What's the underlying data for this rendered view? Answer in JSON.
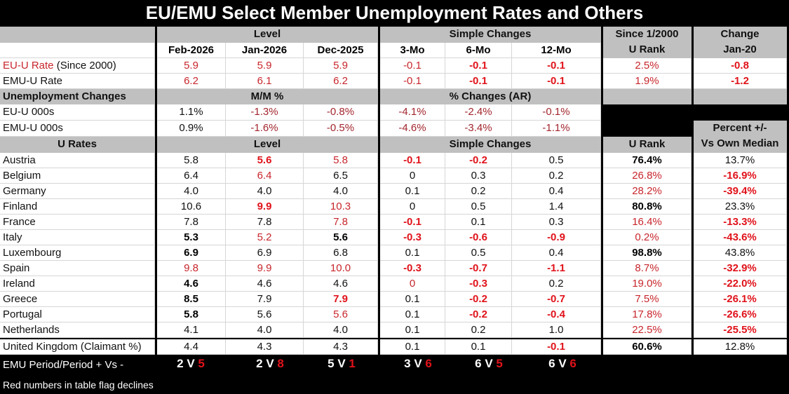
{
  "title": "EU/EMU Select Member Unemployment Rates and Others",
  "header": {
    "level": "Level",
    "simple_changes": "Simple Changes",
    "rank_line1": "Since 1/2000",
    "rank_line2": "U Rank",
    "change_line1": "Change",
    "change_line2": "Jan-20",
    "columns": [
      "Feb-2026",
      "Jan-2026",
      "Dec-2025",
      "3-Mo",
      "6-Mo",
      "12-Mo"
    ]
  },
  "summary_rows": [
    {
      "label": "EU-U Rate",
      "label_note": " (Since 2000)",
      "label_style": "r",
      "cells": [
        [
          "5.9",
          "r"
        ],
        [
          "5.9",
          "r"
        ],
        [
          "5.9",
          "r"
        ],
        [
          "-0.1",
          "r"
        ],
        [
          "-0.1",
          "R"
        ],
        [
          "-0.1",
          "R"
        ],
        [
          "2.5%",
          "r"
        ],
        [
          "-0.8",
          "R"
        ]
      ]
    },
    {
      "label": "EMU-U Rate",
      "label_note": "",
      "label_style": "k",
      "cells": [
        [
          "6.2",
          "r"
        ],
        [
          "6.1",
          "r"
        ],
        [
          "6.2",
          "r"
        ],
        [
          "-0.1",
          "r"
        ],
        [
          "-0.1",
          "R"
        ],
        [
          "-0.1",
          "R"
        ],
        [
          "1.9%",
          "r"
        ],
        [
          "-1.2",
          "R"
        ]
      ]
    }
  ],
  "changes_header": {
    "label": "Unemployment Changes",
    "mm": "M/M %",
    "ar": "% Changes (AR)"
  },
  "changes_rows": [
    {
      "label": "EU-U 000s",
      "cells": [
        [
          "1.1%",
          "k"
        ],
        [
          "-1.3%",
          "d"
        ],
        [
          "-0.8%",
          "d"
        ],
        [
          "-4.1%",
          "d"
        ],
        [
          "-2.4%",
          "d"
        ],
        [
          "-0.1%",
          "d"
        ]
      ]
    },
    {
      "label": "EMU-U 000s",
      "cells": [
        [
          "0.9%",
          "k"
        ],
        [
          "-1.6%",
          "d"
        ],
        [
          "-0.5%",
          "d"
        ],
        [
          "-4.6%",
          "d"
        ],
        [
          "-3.4%",
          "d"
        ],
        [
          "-1.1%",
          "d"
        ]
      ]
    }
  ],
  "rates_header": {
    "label": "U Rates",
    "level": "Level",
    "simple": "Simple Changes",
    "rank": "U Rank",
    "pct_line1": "Percent +/-",
    "pct_line2": "Vs Own Median"
  },
  "countries": [
    {
      "name": "Austria",
      "cells": [
        [
          "5.8",
          "k"
        ],
        [
          "5.6",
          "R"
        ],
        [
          "5.8",
          "r"
        ],
        [
          "-0.1",
          "R"
        ],
        [
          "-0.2",
          "R"
        ],
        [
          "0.5",
          "k"
        ],
        [
          "76.4%",
          "K"
        ],
        [
          "13.7%",
          "k"
        ]
      ]
    },
    {
      "name": "Belgium",
      "cells": [
        [
          "6.4",
          "k"
        ],
        [
          "6.4",
          "r"
        ],
        [
          "6.5",
          "k"
        ],
        [
          "0",
          "k"
        ],
        [
          "0.3",
          "k"
        ],
        [
          "0.2",
          "k"
        ],
        [
          "26.8%",
          "r"
        ],
        [
          "-16.9%",
          "R"
        ]
      ]
    },
    {
      "name": "Germany",
      "cells": [
        [
          "4.0",
          "k"
        ],
        [
          "4.0",
          "k"
        ],
        [
          "4.0",
          "k"
        ],
        [
          "0.1",
          "k"
        ],
        [
          "0.2",
          "k"
        ],
        [
          "0.4",
          "k"
        ],
        [
          "28.2%",
          "r"
        ],
        [
          "-39.4%",
          "R"
        ]
      ]
    },
    {
      "name": "Finland",
      "cells": [
        [
          "10.6",
          "k"
        ],
        [
          "9.9",
          "R"
        ],
        [
          "10.3",
          "r"
        ],
        [
          "0",
          "k"
        ],
        [
          "0.5",
          "k"
        ],
        [
          "1.4",
          "k"
        ],
        [
          "80.8%",
          "K"
        ],
        [
          "23.3%",
          "k"
        ]
      ]
    },
    {
      "name": "France",
      "cells": [
        [
          "7.8",
          "k"
        ],
        [
          "7.8",
          "k"
        ],
        [
          "7.8",
          "r"
        ],
        [
          "-0.1",
          "R"
        ],
        [
          "0.1",
          "k"
        ],
        [
          "0.3",
          "k"
        ],
        [
          "16.4%",
          "r"
        ],
        [
          "-13.3%",
          "R"
        ]
      ]
    },
    {
      "name": "Italy",
      "cells": [
        [
          "5.3",
          "K"
        ],
        [
          "5.2",
          "r"
        ],
        [
          "5.6",
          "K"
        ],
        [
          "-0.3",
          "R"
        ],
        [
          "-0.6",
          "R"
        ],
        [
          "-0.9",
          "R"
        ],
        [
          "0.2%",
          "r"
        ],
        [
          "-43.6%",
          "R"
        ]
      ]
    },
    {
      "name": "Luxembourg",
      "cells": [
        [
          "6.9",
          "K"
        ],
        [
          "6.9",
          "k"
        ],
        [
          "6.8",
          "k"
        ],
        [
          "0.1",
          "k"
        ],
        [
          "0.5",
          "k"
        ],
        [
          "0.4",
          "k"
        ],
        [
          "98.8%",
          "K"
        ],
        [
          "43.8%",
          "k"
        ]
      ]
    },
    {
      "name": "Spain",
      "cells": [
        [
          "9.8",
          "r"
        ],
        [
          "9.9",
          "r"
        ],
        [
          "10.0",
          "r"
        ],
        [
          "-0.3",
          "R"
        ],
        [
          "-0.7",
          "R"
        ],
        [
          "-1.1",
          "R"
        ],
        [
          "8.7%",
          "r"
        ],
        [
          "-32.9%",
          "R"
        ]
      ]
    },
    {
      "name": "Ireland",
      "cells": [
        [
          "4.6",
          "K"
        ],
        [
          "4.6",
          "k"
        ],
        [
          "4.6",
          "k"
        ],
        [
          "0",
          "r"
        ],
        [
          "-0.3",
          "R"
        ],
        [
          "0.2",
          "k"
        ],
        [
          "19.0%",
          "r"
        ],
        [
          "-22.0%",
          "R"
        ]
      ]
    },
    {
      "name": "Greece",
      "cells": [
        [
          "8.5",
          "K"
        ],
        [
          "7.9",
          "k"
        ],
        [
          "7.9",
          "R"
        ],
        [
          "0.1",
          "k"
        ],
        [
          "-0.2",
          "R"
        ],
        [
          "-0.7",
          "R"
        ],
        [
          "7.5%",
          "r"
        ],
        [
          "-26.1%",
          "R"
        ]
      ]
    },
    {
      "name": "Portugal",
      "cells": [
        [
          "5.8",
          "K"
        ],
        [
          "5.6",
          "k"
        ],
        [
          "5.6",
          "r"
        ],
        [
          "0.1",
          "k"
        ],
        [
          "-0.2",
          "R"
        ],
        [
          "-0.4",
          "R"
        ],
        [
          "17.8%",
          "r"
        ],
        [
          "-26.6%",
          "R"
        ]
      ]
    },
    {
      "name": "Netherlands",
      "cells": [
        [
          "4.1",
          "k"
        ],
        [
          "4.0",
          "k"
        ],
        [
          "4.0",
          "k"
        ],
        [
          "0.1",
          "k"
        ],
        [
          "0.2",
          "k"
        ],
        [
          "1.0",
          "k"
        ],
        [
          "22.5%",
          "r"
        ],
        [
          "-25.5%",
          "R"
        ]
      ]
    }
  ],
  "uk_row": {
    "name": "United Kingdom (Claimant %)",
    "cells": [
      [
        "4.4",
        "k"
      ],
      [
        "4.3",
        "k"
      ],
      [
        "4.3",
        "k"
      ],
      [
        "0.1",
        "k"
      ],
      [
        "0.1",
        "k"
      ],
      [
        "-0.1",
        "R"
      ],
      [
        "60.6%",
        "K"
      ],
      [
        "12.8%",
        "k"
      ]
    ]
  },
  "footer": {
    "label": "EMU Period/Period + Vs -",
    "vs": "V",
    "tallies": [
      {
        "plus": "2",
        "minus": "5"
      },
      {
        "plus": "2",
        "minus": "8"
      },
      {
        "plus": "5",
        "minus": "1"
      },
      {
        "plus": "3",
        "minus": "6"
      },
      {
        "plus": "6",
        "minus": "5"
      },
      {
        "plus": "6",
        "minus": "6"
      }
    ],
    "note": "Red numbers in table flag declines"
  },
  "colors": {
    "red": "#c8262c",
    "bold_red": "#e0121a",
    "header_gray": "#c0c0c0",
    "background": "#000000"
  }
}
